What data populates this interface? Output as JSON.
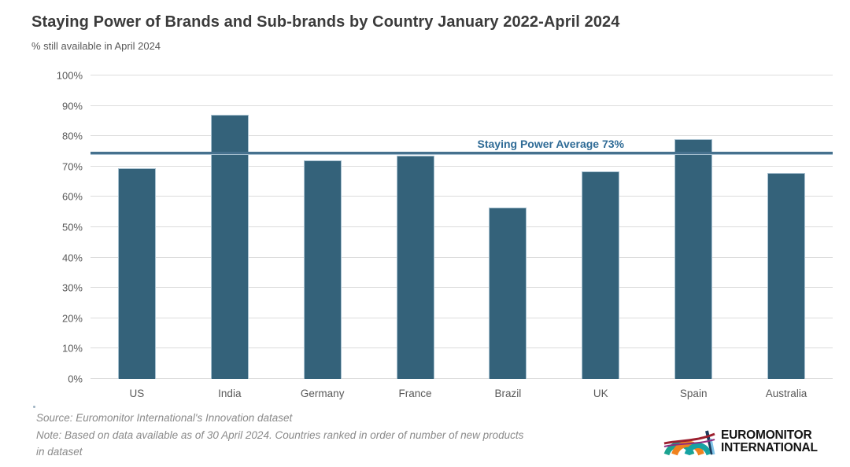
{
  "header": {
    "title": "Staying Power of Brands and Sub-brands by Country January 2022-April 2024",
    "subtitle": "% still available in April 2024"
  },
  "chart_data": {
    "type": "bar",
    "title": "Staying Power of Brands and Sub-brands by Country January 2022-April 2024",
    "subtitle": "% still available in April 2024",
    "categories": [
      "US",
      "India",
      "Germany",
      "France",
      "Brazil",
      "UK",
      "Spain",
      "Australia"
    ],
    "values": [
      69.5,
      87,
      72,
      73.5,
      56.5,
      68.5,
      79,
      68
    ],
    "xlabel": "",
    "ylabel": "% still available in April 2024",
    "ylim": [
      0,
      100
    ],
    "ytick_step": 10,
    "ytick_suffix": "%",
    "grid": true,
    "legend": "none",
    "bar_color": "#34627a",
    "bar_border_color": "#a9c2d1",
    "gridline_color": "#dcdcdc",
    "average_line": {
      "label": "Staying Power Average 73%",
      "value": 73,
      "line_position": 74,
      "line_color": "#46718e",
      "label_color": "#2f6b96"
    }
  },
  "footer": {
    "source_line": "Source: Euromonitor International's Innovation dataset",
    "note_lines": [
      "Note: Based on data available as of 30 April 2024. Countries ranked in order of number of new products",
      "in dataset"
    ],
    "logo": {
      "icon": "euromonitor-arches-icon",
      "line1": "EUROMONITOR",
      "line2": "INTERNATIONAL"
    }
  }
}
